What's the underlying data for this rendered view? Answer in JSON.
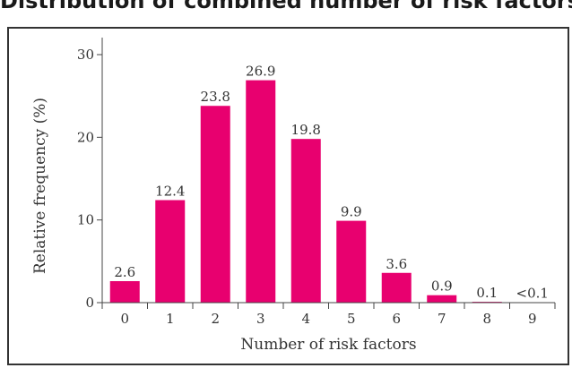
{
  "chart_data": {
    "type": "bar",
    "title": "Distribution of combined number of risk factors (model population)",
    "xlabel": "Number of risk factors",
    "ylabel": "Relative frequency (%)",
    "categories": [
      "0",
      "1",
      "2",
      "3",
      "4",
      "5",
      "6",
      "7",
      "8",
      "9"
    ],
    "values": [
      2.6,
      12.4,
      23.8,
      26.9,
      19.8,
      9.9,
      3.6,
      0.9,
      0.1,
      0.05
    ],
    "data_labels": [
      "2.6",
      "12.4",
      "23.8",
      "26.9",
      "19.8",
      "9.9",
      "3.6",
      "0.9",
      "0.1",
      "<0.1"
    ],
    "yticks": [
      "0",
      "10",
      "20",
      "30"
    ],
    "ylim": [
      0,
      30
    ],
    "grid": false,
    "legend": "none",
    "bar_color": "#e8006f"
  }
}
